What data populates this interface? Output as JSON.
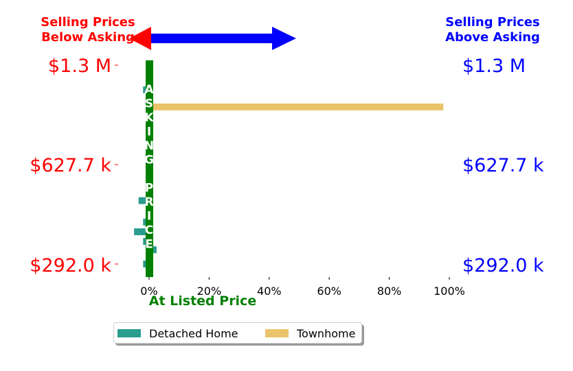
{
  "header": {
    "left_label_line1": "Selling Prices",
    "left_label_line2": "Below Asking",
    "right_label_line1": "Selling Prices",
    "right_label_line2": "Above Asking",
    "left_color": "#ff0000",
    "right_color": "#0000ff"
  },
  "price_labels": [
    "$1.3 M",
    "$627.7 k",
    "$292.0 k"
  ],
  "center_line": {
    "vertical_text": [
      "A",
      "S",
      "K",
      "I",
      "N",
      "G",
      " ",
      "P",
      "R",
      "I",
      "C",
      "E"
    ],
    "caption": "At Listed Price",
    "color": "#008000"
  },
  "legend": [
    {
      "name": "Detached Home",
      "color": "#2a9d8f"
    },
    {
      "name": "Townhome",
      "color": "#e9c46a"
    }
  ],
  "chart_data": {
    "type": "bar",
    "orientation": "horizontal",
    "xlim": [
      -10,
      100
    ],
    "x_ticks": [
      0,
      20,
      40,
      60,
      80,
      100
    ],
    "x_tick_labels": [
      "0%",
      "20%",
      "40%",
      "60%",
      "80%",
      "100%"
    ],
    "y_tick_labels": [
      "$1.3 M",
      "$627.7 k",
      "$292.0 k"
    ],
    "series": [
      {
        "name": "Detached Home",
        "color": "#2a9d8f",
        "points": [
          {
            "price_k": 1080,
            "pct": -2
          },
          {
            "price_k": 470,
            "pct": -3.5
          },
          {
            "price_k": 400,
            "pct": -2
          },
          {
            "price_k": 372,
            "pct": -5
          },
          {
            "price_k": 346,
            "pct": -2
          },
          {
            "price_k": 325,
            "pct": 2.5
          },
          {
            "price_k": 292,
            "pct": -2
          }
        ]
      },
      {
        "name": "Townhome",
        "color": "#e9c46a",
        "points": [
          {
            "price_k": 950,
            "pct": 98
          }
        ]
      }
    ],
    "legend_position": "bottom"
  }
}
